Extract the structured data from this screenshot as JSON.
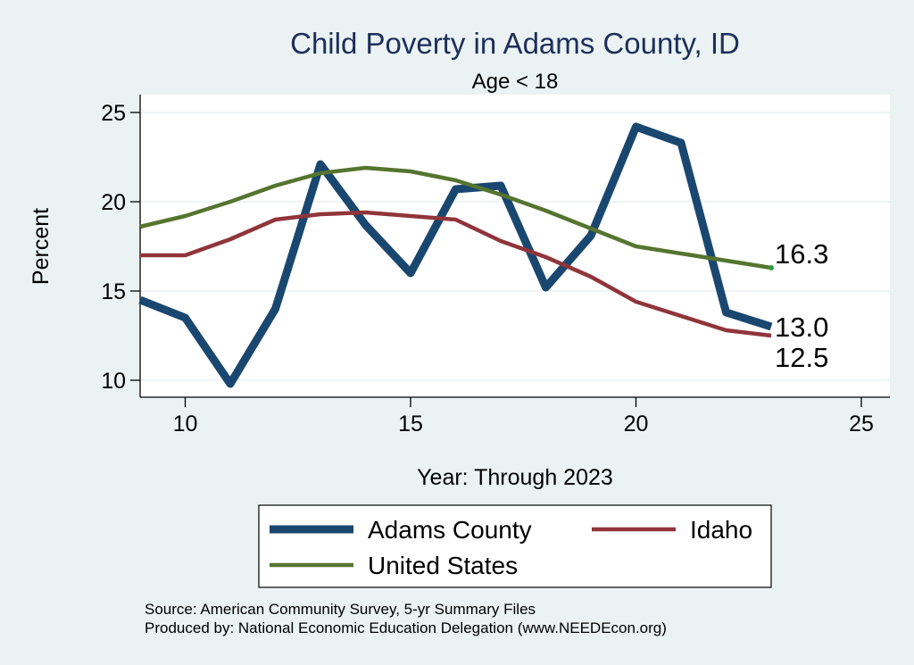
{
  "chart_data": {
    "type": "line",
    "title": "Child Poverty in Adams County, ID",
    "subtitle": "Age < 18",
    "xlabel": "Year: Through 2023",
    "ylabel": "Percent",
    "xlim": [
      9,
      25
    ],
    "ylim": [
      9,
      26
    ],
    "x_ticks": [
      10,
      15,
      20,
      25
    ],
    "y_ticks": [
      10,
      15,
      20,
      25
    ],
    "grid": true,
    "legend_position": "bottom",
    "x": [
      9,
      10,
      11,
      12,
      13,
      14,
      15,
      16,
      17,
      18,
      19,
      20,
      21,
      22,
      23
    ],
    "series": [
      {
        "name": "Adams County",
        "color": "#1a476f",
        "values": [
          14.5,
          13.5,
          9.8,
          14.0,
          22.1,
          18.7,
          16.0,
          20.7,
          20.9,
          15.2,
          18.1,
          24.2,
          23.3,
          13.8,
          13.0
        ],
        "end_label": "13.0"
      },
      {
        "name": "Idaho",
        "color": "#90353b",
        "values": [
          17.0,
          17.0,
          17.9,
          19.0,
          19.3,
          19.4,
          19.2,
          19.0,
          17.8,
          16.9,
          15.8,
          14.4,
          13.6,
          12.8,
          12.5
        ],
        "end_label": "12.5"
      },
      {
        "name": "United States",
        "color": "#55752f",
        "values": [
          18.6,
          19.2,
          20.0,
          20.9,
          21.6,
          21.9,
          21.7,
          21.2,
          20.4,
          19.5,
          18.5,
          17.5,
          17.1,
          16.7,
          16.3
        ],
        "end_label": "16.3"
      }
    ]
  },
  "notes": {
    "source": "Source: American Community Survey, 5-yr Summary Files",
    "produced": "Produced by: National Economic Education Delegation (www.NEEDEcon.org)"
  }
}
